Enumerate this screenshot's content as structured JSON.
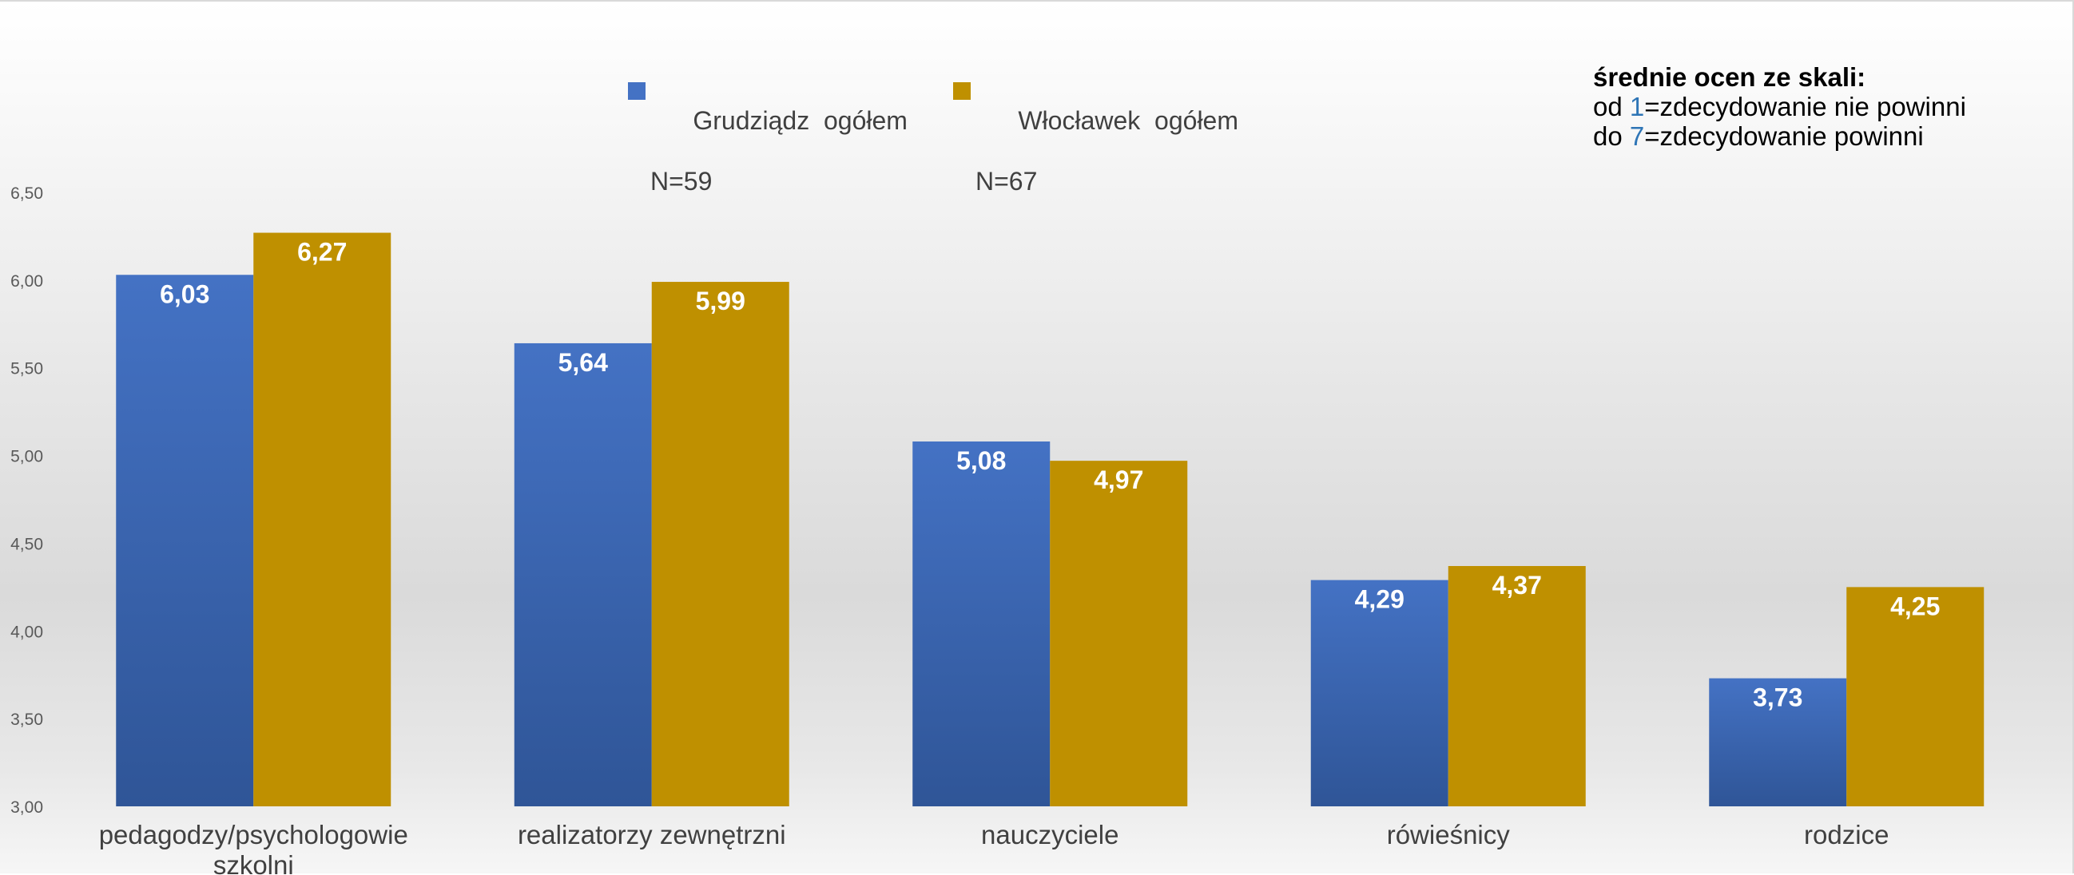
{
  "chart_data": {
    "type": "bar",
    "categories": [
      "pedagodzy/psychologowie szkolni",
      "realizatorzy zewnętrzni",
      "nauczyciele",
      "rówieśnicy",
      "rodzice"
    ],
    "series": [
      {
        "name": "Grudziądz  ogółem",
        "n": "N=59",
        "color": "#4472c4",
        "values": [
          6.03,
          5.64,
          5.08,
          4.29,
          3.73
        ],
        "labels": [
          "6,03",
          "5,64",
          "5,08",
          "4,29",
          "3,73"
        ]
      },
      {
        "name": "Włocławek  ogółem",
        "n": "N=67",
        "color": "#bf9000",
        "values": [
          6.27,
          5.99,
          4.97,
          4.37,
          4.25
        ],
        "labels": [
          "6,27",
          "5,99",
          "4,97",
          "4,37",
          "4,25"
        ]
      }
    ],
    "ylim": [
      3.0,
      6.5
    ],
    "yticks": [
      "3,00",
      "3,50",
      "4,00",
      "4,50",
      "5,00",
      "5,50",
      "6,00",
      "6,50"
    ],
    "grid": false,
    "legend_position": "top"
  },
  "note": {
    "title": "średnie ocen ze skali:",
    "line1_prefix": "od ",
    "line1_num": "1",
    "line1_suffix": "=zdecydowanie nie powinni",
    "line2_prefix": "do ",
    "line2_num": "7",
    "line2_suffix": "=zdecydowanie powinni"
  }
}
